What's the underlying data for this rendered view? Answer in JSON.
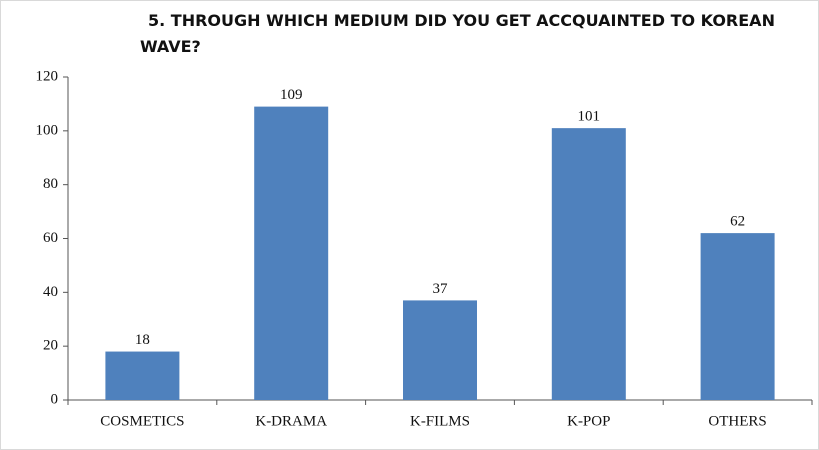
{
  "chart_data": {
    "type": "bar",
    "title": "5. THROUGH WHICH MEDIUM DID YOU GET ACCQUAINTED TO KOREAN WAVE?",
    "categories": [
      "COSMETICS",
      "K-DRAMA",
      "K-FILMS",
      "K-POP",
      "OTHERS"
    ],
    "values": [
      18,
      109,
      37,
      101,
      62
    ],
    "color": "#4f81bd",
    "ylim": [
      0,
      120
    ],
    "yticks": [
      0,
      20,
      40,
      60,
      80,
      100,
      120
    ],
    "grid": false
  }
}
